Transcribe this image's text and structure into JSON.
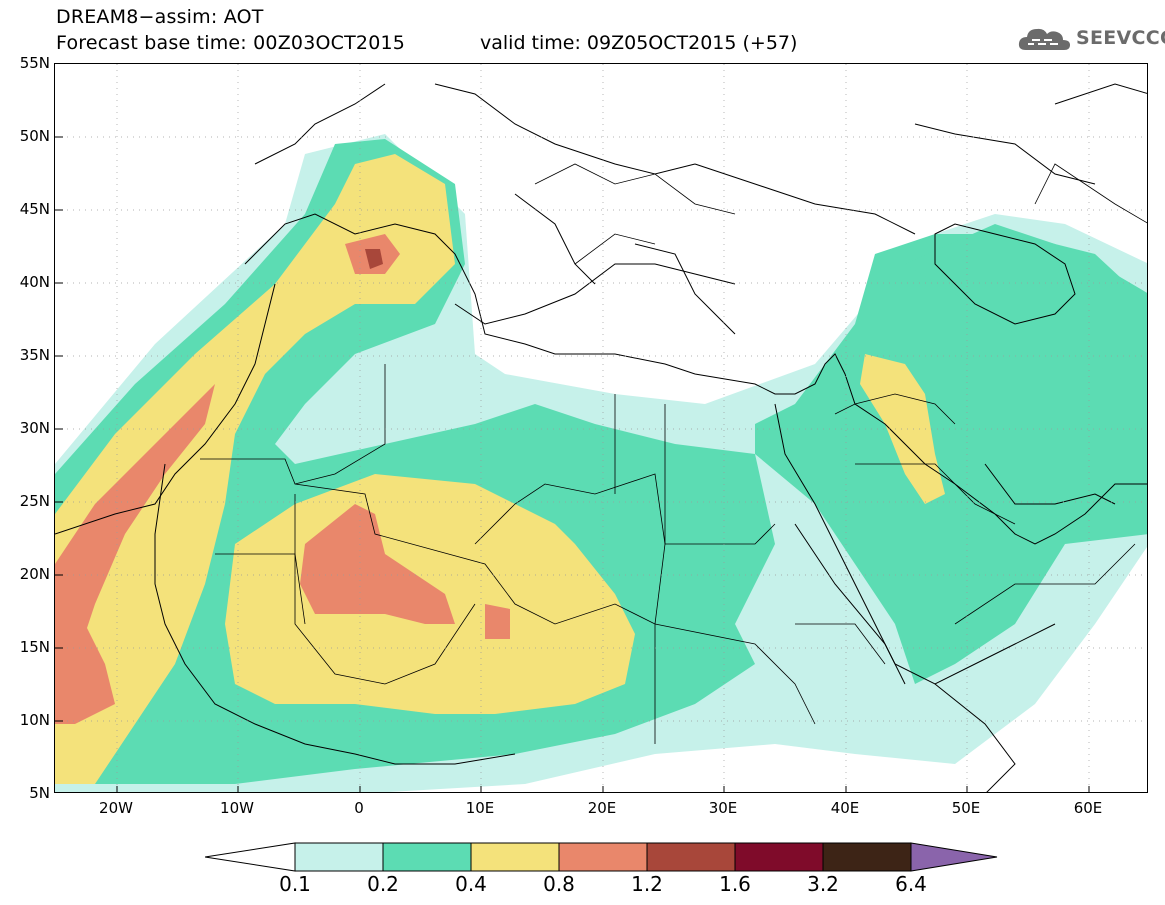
{
  "title": {
    "line1": "DREAM8−assim: AOT",
    "line2": "Forecast base time: 00Z03OCT2015",
    "valid": "valid time: 09Z05OCT2015 (+57)"
  },
  "logo": {
    "text": "SEEVCCC",
    "icon": "cloud-icon"
  },
  "map": {
    "lon_range": [
      -25,
      65
    ],
    "lat_range": [
      5,
      55
    ],
    "lat_ticks": [
      "55N",
      "50N",
      "45N",
      "40N",
      "35N",
      "30N",
      "25N",
      "20N",
      "15N",
      "10N",
      "5N"
    ],
    "lon_ticks": [
      "20W",
      "10W",
      "0",
      "10E",
      "20E",
      "30E",
      "40E",
      "50E",
      "60E"
    ],
    "grid": "dotted"
  },
  "colorbar": {
    "labels": [
      "0.1",
      "0.2",
      "0.4",
      "0.8",
      "1.2",
      "1.6",
      "3.2",
      "6.4"
    ],
    "colors": [
      "#ffffff",
      "#c6f1ea",
      "#5cdcb3",
      "#f4e27b",
      "#e9876b",
      "#a8473a",
      "#7f0b2a",
      "#3d2416",
      "#8a64ab"
    ]
  }
}
